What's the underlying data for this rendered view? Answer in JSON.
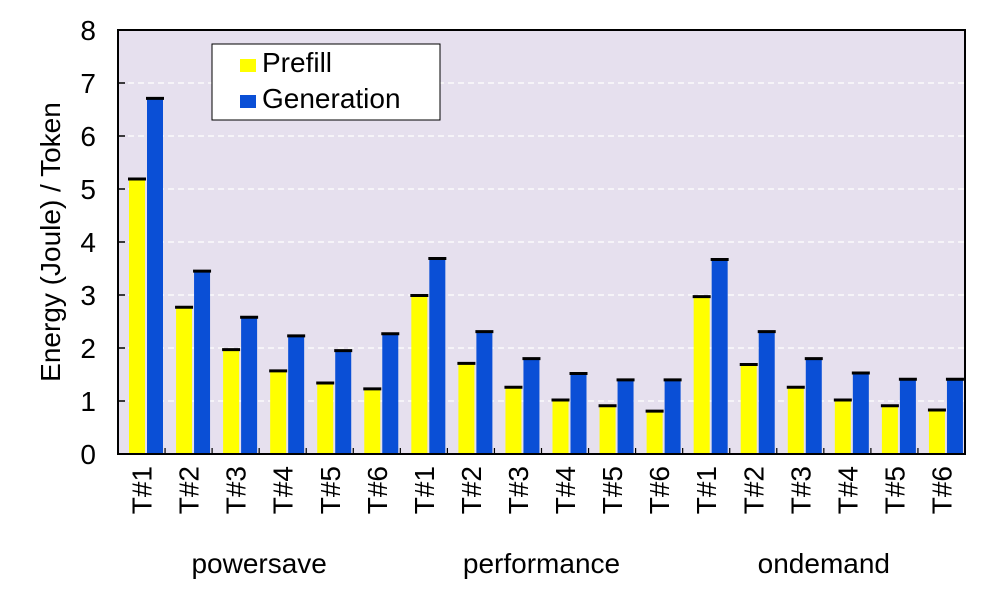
{
  "chart_data": {
    "type": "bar",
    "ylabel": "Energy (Joule) / Token",
    "ylim": [
      0,
      8
    ],
    "yticks": [
      "0",
      "1",
      "2",
      "3",
      "4",
      "5",
      "6",
      "7",
      "8"
    ],
    "grid": "horizontal dashed",
    "legend_position": "top-left",
    "background_color": "#e6e0ee",
    "groups": [
      "powersave",
      "performance",
      "ondemand"
    ],
    "categories": [
      "T#1",
      "T#2",
      "T#3",
      "T#4",
      "T#5",
      "T#6"
    ],
    "series": [
      {
        "name": "Prefill",
        "color": "#ffff00",
        "values": [
          [
            5.18,
            2.76,
            1.96,
            1.56,
            1.33,
            1.22
          ],
          [
            2.98,
            1.7,
            1.25,
            1.01,
            0.9,
            0.8
          ],
          [
            2.96,
            1.68,
            1.25,
            1.01,
            0.9,
            0.82
          ]
        ]
      },
      {
        "name": "Generation",
        "color": "#0a4fd6",
        "values": [
          [
            6.7,
            3.44,
            2.57,
            2.22,
            1.94,
            2.26
          ],
          [
            3.68,
            2.3,
            1.79,
            1.51,
            1.39,
            1.39
          ],
          [
            3.66,
            2.3,
            1.79,
            1.52,
            1.4,
            1.4
          ]
        ]
      }
    ]
  }
}
